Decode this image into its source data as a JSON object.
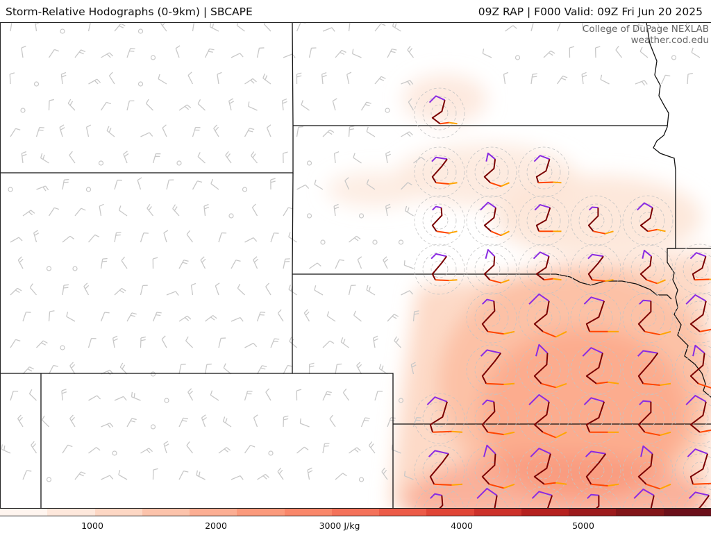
{
  "header": {
    "left_title": "Storm-Relative Hodographs (0-9km) | SBCAPE",
    "right_title": "09Z RAP | F000 Valid: 09Z Fri Jun 20 2025"
  },
  "credit": {
    "line1": "College of DuPage NEXLAB",
    "line2": "weather.cod.edu"
  },
  "colorbar": {
    "label_values": [
      "1000",
      "2000",
      "3000 J/kg",
      "4000",
      "5000"
    ],
    "units": "J/kg",
    "colors": [
      "#fff5ef",
      "#fee8dc",
      "#fdd7c4",
      "#fcc3ab",
      "#fcae93",
      "#fb9a7c",
      "#f9876a",
      "#f4725a",
      "#ec5b48",
      "#e04536",
      "#cc312a",
      "#b5211f",
      "#9c1a1c",
      "#821619",
      "#6b101a"
    ]
  },
  "map_colors": {
    "border": "#111111",
    "barb": "#c8c8c8",
    "hodo_ring": "#c4c4c4",
    "hodo_segments": [
      "#8a2be2",
      "#7a0000",
      "#ff4500",
      "#ffa500"
    ]
  }
}
